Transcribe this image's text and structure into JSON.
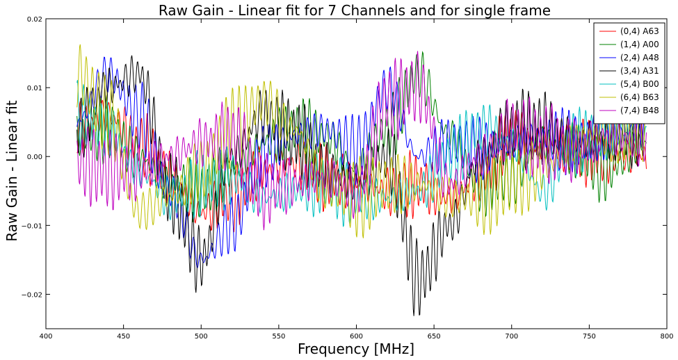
{
  "chart_data": {
    "type": "line",
    "title": "Raw Gain - Linear fit for 7 Channels and for single frame",
    "xlabel": "Frequency [MHz]",
    "ylabel": "Raw Gain - Linear fit",
    "xlim": [
      400,
      800
    ],
    "ylim": [
      -0.025,
      0.02
    ],
    "xticks": [
      400,
      450,
      500,
      550,
      600,
      650,
      700,
      750,
      800
    ],
    "xtick_labels": [
      "400",
      "450",
      "500",
      "550",
      "600",
      "650",
      "700",
      "750",
      "800"
    ],
    "yticks": [
      -0.02,
      -0.01,
      0.0,
      0.01,
      0.02
    ],
    "ytick_labels": [
      "−0.02",
      "−0.01",
      "0.00",
      "0.01",
      "0.02"
    ],
    "grid": false,
    "legend_position": "top-right",
    "x_range": [
      420,
      787
    ],
    "series": [
      {
        "name": "(0,4) A63",
        "color": "#ff0000",
        "x": [
          420,
          440,
          460,
          480,
          500,
          520,
          540,
          560,
          580,
          600,
          620,
          640,
          660,
          680,
          700,
          720,
          740,
          760,
          787
        ],
        "envelope_center": [
          0.004,
          0.006,
          0.002,
          -0.003,
          -0.008,
          -0.006,
          -0.002,
          -0.001,
          -0.003,
          -0.004,
          -0.005,
          -0.004,
          -0.006,
          -0.003,
          0.003,
          0.002,
          0.001,
          0.0,
          0.0
        ],
        "ripple_amplitude": 0.004
      },
      {
        "name": "(1,4) A00",
        "color": "#008000",
        "x": [
          420,
          440,
          460,
          480,
          500,
          520,
          540,
          560,
          580,
          600,
          620,
          640,
          660,
          680,
          700,
          720,
          740,
          760,
          787
        ],
        "envelope_center": [
          0.003,
          0.004,
          0.0,
          -0.004,
          -0.005,
          -0.002,
          0.002,
          0.004,
          0.003,
          -0.002,
          0.004,
          0.012,
          0.003,
          -0.004,
          -0.003,
          0.002,
          0.001,
          -0.002,
          0.002
        ],
        "ripple_amplitude": 0.004
      },
      {
        "name": "(2,4) A48",
        "color": "#0000ff",
        "x": [
          420,
          440,
          460,
          480,
          500,
          520,
          540,
          560,
          580,
          600,
          620,
          640,
          660,
          680,
          700,
          720,
          740,
          760,
          787
        ],
        "envelope_center": [
          0.005,
          0.012,
          0.006,
          -0.005,
          -0.015,
          -0.01,
          0.0,
          0.003,
          0.004,
          0.001,
          0.01,
          0.0,
          0.002,
          0.001,
          0.002,
          0.003,
          0.002,
          0.003,
          0.004
        ],
        "ripple_amplitude": 0.004
      },
      {
        "name": "(3,4) A31",
        "color": "#000000",
        "x": [
          420,
          440,
          460,
          480,
          500,
          520,
          540,
          560,
          580,
          600,
          620,
          640,
          660,
          680,
          700,
          720,
          740,
          760,
          787
        ],
        "envelope_center": [
          0.004,
          0.01,
          0.012,
          -0.005,
          -0.015,
          0.0,
          0.006,
          0.003,
          -0.002,
          -0.004,
          0.0,
          -0.018,
          -0.01,
          0.0,
          0.004,
          0.004,
          0.002,
          0.003,
          0.004
        ],
        "ripple_amplitude": 0.005
      },
      {
        "name": "(5,4) B00",
        "color": "#00bfbf",
        "x": [
          420,
          440,
          460,
          480,
          500,
          520,
          540,
          560,
          580,
          600,
          620,
          640,
          660,
          680,
          700,
          720,
          740,
          760,
          787
        ],
        "envelope_center": [
          0.006,
          0.004,
          -0.002,
          -0.006,
          -0.004,
          -0.003,
          -0.006,
          -0.005,
          -0.004,
          -0.006,
          -0.006,
          -0.005,
          0.0,
          0.004,
          0.002,
          -0.005,
          0.002,
          0.004,
          0.003
        ],
        "ripple_amplitude": 0.004
      },
      {
        "name": "(6,4) B63",
        "color": "#bfbf00",
        "x": [
          420,
          440,
          460,
          480,
          500,
          520,
          540,
          560,
          580,
          600,
          620,
          640,
          660,
          680,
          700,
          720,
          740,
          760,
          787
        ],
        "envelope_center": [
          0.012,
          0.006,
          -0.008,
          -0.006,
          -0.002,
          0.004,
          0.008,
          0.004,
          -0.004,
          -0.006,
          -0.004,
          -0.004,
          -0.006,
          -0.006,
          -0.004,
          -0.002,
          0.002,
          0.004,
          0.004
        ],
        "ripple_amplitude": 0.005
      },
      {
        "name": "(7,4) B48",
        "color": "#bf00bf",
        "x": [
          420,
          440,
          460,
          480,
          500,
          520,
          540,
          560,
          580,
          600,
          620,
          640,
          660,
          680,
          700,
          720,
          740,
          760,
          787
        ],
        "envelope_center": [
          -0.001,
          -0.002,
          -0.002,
          0.0,
          0.002,
          0.003,
          -0.005,
          -0.004,
          -0.003,
          -0.005,
          0.008,
          0.01,
          -0.004,
          0.0,
          0.004,
          0.002,
          0.001,
          0.003,
          0.002
        ],
        "ripple_amplitude": 0.005
      }
    ]
  }
}
